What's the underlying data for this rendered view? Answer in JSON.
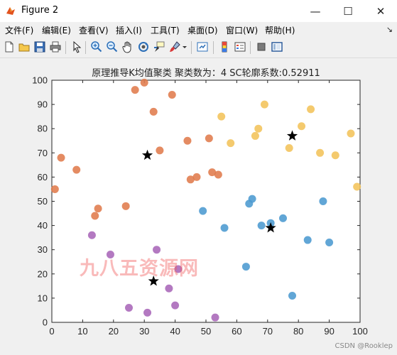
{
  "window": {
    "title": "Figure 2",
    "controls": {
      "minimize": "—",
      "maximize": "☐",
      "close": "✕"
    }
  },
  "menu": {
    "items": [
      "文件(F)",
      "编辑(E)",
      "查看(V)",
      "插入(I)",
      "工具(T)",
      "桌面(D)",
      "窗口(W)",
      "帮助(H)"
    ],
    "dock_arrow": "↘"
  },
  "toolbar": {
    "buttons": [
      "new-figure-icon",
      "open-file-icon",
      "save-icon",
      "print-icon",
      "edit-plot-arrow-icon",
      "zoom-in-icon",
      "zoom-out-icon",
      "pan-hand-icon",
      "rotate-3d-icon",
      "data-cursor-icon",
      "brush-icon",
      "link-plot-icon",
      "colorbar-icon",
      "legend-icon",
      "hide-plot-tools-icon",
      "show-plot-tools-icon"
    ]
  },
  "figure": {
    "axes_title": "原理推导K均值聚类  聚类数为：4  SC轮廓系数:0.52911",
    "watermark": "九八五资源网",
    "credit": "CSDN @Rooklep"
  },
  "chart_data": {
    "type": "scatter",
    "title": "原理推导K均值聚类  聚类数为：4  SC轮廓系数:0.52911",
    "xlabel": "",
    "ylabel": "",
    "xlim": [
      0,
      100
    ],
    "ylim": [
      0,
      100
    ],
    "xticks": [
      0,
      10,
      20,
      30,
      40,
      50,
      60,
      70,
      80,
      90,
      100
    ],
    "yticks": [
      0,
      10,
      20,
      30,
      40,
      50,
      60,
      70,
      80,
      90,
      100
    ],
    "grid": false,
    "series": [
      {
        "color": "#e07b4c",
        "points": [
          [
            1,
            55
          ],
          [
            3,
            68
          ],
          [
            8,
            63
          ],
          [
            14,
            44
          ],
          [
            15,
            47
          ],
          [
            24,
            48
          ],
          [
            27,
            96
          ],
          [
            30,
            99
          ],
          [
            33,
            87
          ],
          [
            35,
            71
          ],
          [
            39,
            94
          ],
          [
            44,
            75
          ],
          [
            45,
            59
          ],
          [
            47,
            60
          ],
          [
            51,
            76
          ],
          [
            52,
            62
          ],
          [
            54,
            61
          ]
        ]
      },
      {
        "color": "#f2c35a",
        "points": [
          [
            55,
            85
          ],
          [
            58,
            74
          ],
          [
            66,
            77
          ],
          [
            67,
            80
          ],
          [
            69,
            90
          ],
          [
            77,
            72
          ],
          [
            81,
            81
          ],
          [
            84,
            88
          ],
          [
            87,
            70
          ],
          [
            92,
            69
          ],
          [
            97,
            78
          ],
          [
            99,
            56
          ]
        ]
      },
      {
        "color": "#4b9ad0",
        "points": [
          [
            49,
            46
          ],
          [
            56,
            39
          ],
          [
            63,
            23
          ],
          [
            64,
            49
          ],
          [
            65,
            51
          ],
          [
            68,
            40
          ],
          [
            71,
            41
          ],
          [
            75,
            43
          ],
          [
            78,
            11
          ],
          [
            83,
            34
          ],
          [
            88,
            50
          ],
          [
            90,
            33
          ]
        ]
      },
      {
        "color": "#a866b8",
        "points": [
          [
            13,
            36
          ],
          [
            19,
            28
          ],
          [
            25,
            6
          ],
          [
            31,
            4
          ],
          [
            34,
            30
          ],
          [
            38,
            14
          ],
          [
            40,
            7
          ],
          [
            41,
            22
          ],
          [
            53,
            2
          ]
        ]
      }
    ],
    "centroids": {
      "marker": "star",
      "color": "#000000",
      "points": [
        [
          31,
          69
        ],
        [
          78,
          77
        ],
        [
          71,
          39
        ],
        [
          33,
          17
        ]
      ]
    }
  }
}
